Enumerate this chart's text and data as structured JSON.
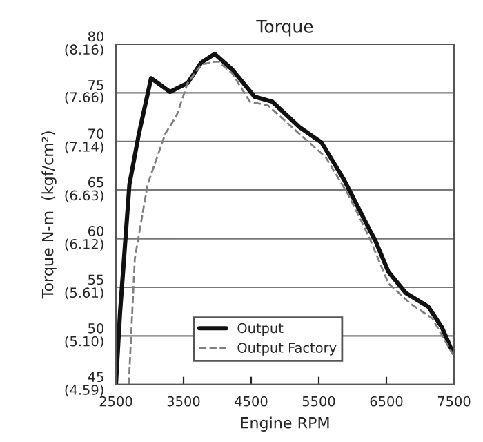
{
  "chart_data": {
    "type": "line",
    "title": "Torque",
    "xlabel": "Engine RPM",
    "y2label": "Torque N-m  (kgf/cm²)",
    "xlim": [
      2500,
      7500
    ],
    "xticks": [
      2500,
      3500,
      4500,
      5500,
      6500,
      7500
    ],
    "ylim": [
      45,
      80
    ],
    "yticks": [
      45,
      50,
      55,
      60,
      65,
      70,
      75,
      80
    ],
    "y2lim": [
      4.59,
      8.16
    ],
    "y2ticks": [
      {
        "value": 4.59,
        "label": "(4.59)"
      },
      {
        "value": 5.1,
        "label": "(5.10)"
      },
      {
        "value": 5.61,
        "label": "(5.61)"
      },
      {
        "value": 6.12,
        "label": "(6.12)"
      },
      {
        "value": 6.63,
        "label": "(6.63)"
      },
      {
        "value": 7.14,
        "label": "(7.14)"
      },
      {
        "value": 7.66,
        "label": "(7.66)"
      },
      {
        "value": 8.16,
        "label": "(8.16)"
      }
    ],
    "grid": "y",
    "legend": "bottom",
    "series": [
      {
        "name": "Output",
        "color": "#111111",
        "line_style": "solid",
        "x": [
          2500,
          2560,
          2700,
          2840,
          3020,
          3300,
          3560,
          3760,
          3960,
          4220,
          4550,
          4810,
          5210,
          5540,
          5870,
          6260,
          6330,
          6530,
          6790,
          7120,
          7320,
          7450,
          7500
        ],
        "values": [
          45,
          52.3,
          65.6,
          70.8,
          76.5,
          75.1,
          76,
          78.1,
          79,
          77.4,
          74.6,
          74.1,
          71.5,
          69.9,
          66.1,
          60.8,
          59.9,
          56.6,
          54.4,
          53,
          50.9,
          48.8,
          48.2
        ]
      },
      {
        "name": "Output Factory",
        "color": "#808080",
        "line_style": "dashed",
        "x": [
          2690,
          2780,
          2970,
          3230,
          3400,
          3560,
          3760,
          3960,
          4020,
          4220,
          4480,
          4750,
          5210,
          5600,
          5930,
          6130,
          6260,
          6530,
          6860,
          7180,
          7450,
          7500
        ],
        "values": [
          45,
          58,
          65.6,
          70.8,
          72.7,
          76,
          77.9,
          78.2,
          78.2,
          77,
          74.1,
          73.7,
          70.8,
          68.4,
          64.6,
          61.8,
          59.9,
          55.4,
          53.3,
          51.8,
          48.5,
          48
        ]
      }
    ]
  }
}
